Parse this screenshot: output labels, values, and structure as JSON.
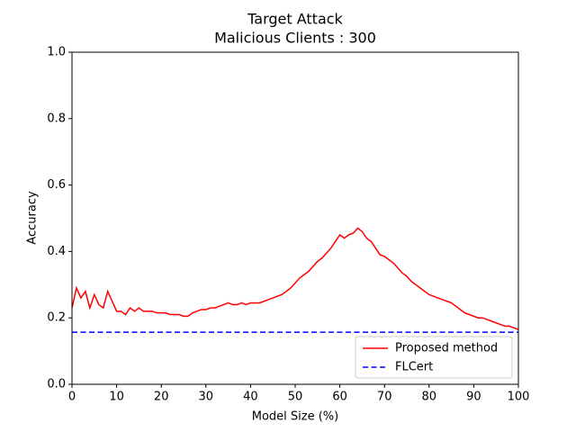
{
  "chart_data": {
    "type": "line",
    "title": "Target Attack",
    "subtitle": "Malicious Clients : 300",
    "x_label": "Model Size (%)",
    "y_label": "Accuracy",
    "xlim": [
      0,
      100
    ],
    "ylim": [
      0,
      1
    ],
    "xticks": [
      0,
      10,
      20,
      30,
      40,
      50,
      60,
      70,
      80,
      90,
      100
    ],
    "yticks": [
      {
        "value": 0,
        "label": "0.0"
      },
      0.2,
      0.4,
      0.6,
      0.8,
      {
        "value": 1,
        "label": "1.0"
      }
    ],
    "legend_position": "lower right",
    "series": [
      {
        "name": "Proposed method",
        "color": "#ff0000",
        "linestyle": "solid",
        "x": [
          0,
          1,
          2,
          3,
          4,
          5,
          6,
          7,
          8,
          9,
          10,
          11,
          12,
          13,
          14,
          15,
          16,
          17,
          18,
          19,
          20,
          21,
          22,
          23,
          24,
          25,
          26,
          27,
          28,
          29,
          30,
          31,
          32,
          33,
          34,
          35,
          36,
          37,
          38,
          39,
          40,
          41,
          42,
          43,
          44,
          45,
          46,
          47,
          48,
          49,
          50,
          51,
          52,
          53,
          54,
          55,
          56,
          57,
          58,
          59,
          60,
          61,
          62,
          63,
          64,
          65,
          66,
          67,
          68,
          69,
          70,
          71,
          72,
          73,
          74,
          75,
          76,
          77,
          78,
          79,
          80,
          81,
          82,
          83,
          84,
          85,
          86,
          87,
          88,
          89,
          90,
          91,
          92,
          93,
          94,
          95,
          96,
          97,
          98,
          99,
          100
        ],
        "values": [
          0.23,
          0.29,
          0.26,
          0.28,
          0.23,
          0.27,
          0.24,
          0.23,
          0.28,
          0.25,
          0.22,
          0.22,
          0.21,
          0.23,
          0.22,
          0.23,
          0.22,
          0.22,
          0.22,
          0.215,
          0.215,
          0.215,
          0.21,
          0.21,
          0.21,
          0.205,
          0.205,
          0.215,
          0.22,
          0.225,
          0.225,
          0.23,
          0.23,
          0.235,
          0.24,
          0.245,
          0.24,
          0.24,
          0.245,
          0.24,
          0.245,
          0.245,
          0.245,
          0.25,
          0.255,
          0.26,
          0.265,
          0.27,
          0.28,
          0.29,
          0.305,
          0.32,
          0.33,
          0.34,
          0.355,
          0.37,
          0.38,
          0.395,
          0.41,
          0.43,
          0.45,
          0.44,
          0.45,
          0.455,
          0.47,
          0.46,
          0.44,
          0.43,
          0.41,
          0.39,
          0.385,
          0.375,
          0.365,
          0.35,
          0.335,
          0.325,
          0.31,
          0.3,
          0.29,
          0.28,
          0.27,
          0.265,
          0.26,
          0.255,
          0.25,
          0.245,
          0.235,
          0.225,
          0.215,
          0.21,
          0.205,
          0.2,
          0.2,
          0.195,
          0.19,
          0.185,
          0.18,
          0.175,
          0.175,
          0.17,
          0.165
        ]
      },
      {
        "name": "FLCert",
        "color": "#0000ff",
        "linestyle": "dashed",
        "x": [
          0,
          100
        ],
        "values": [
          0.157,
          0.157
        ]
      }
    ]
  }
}
